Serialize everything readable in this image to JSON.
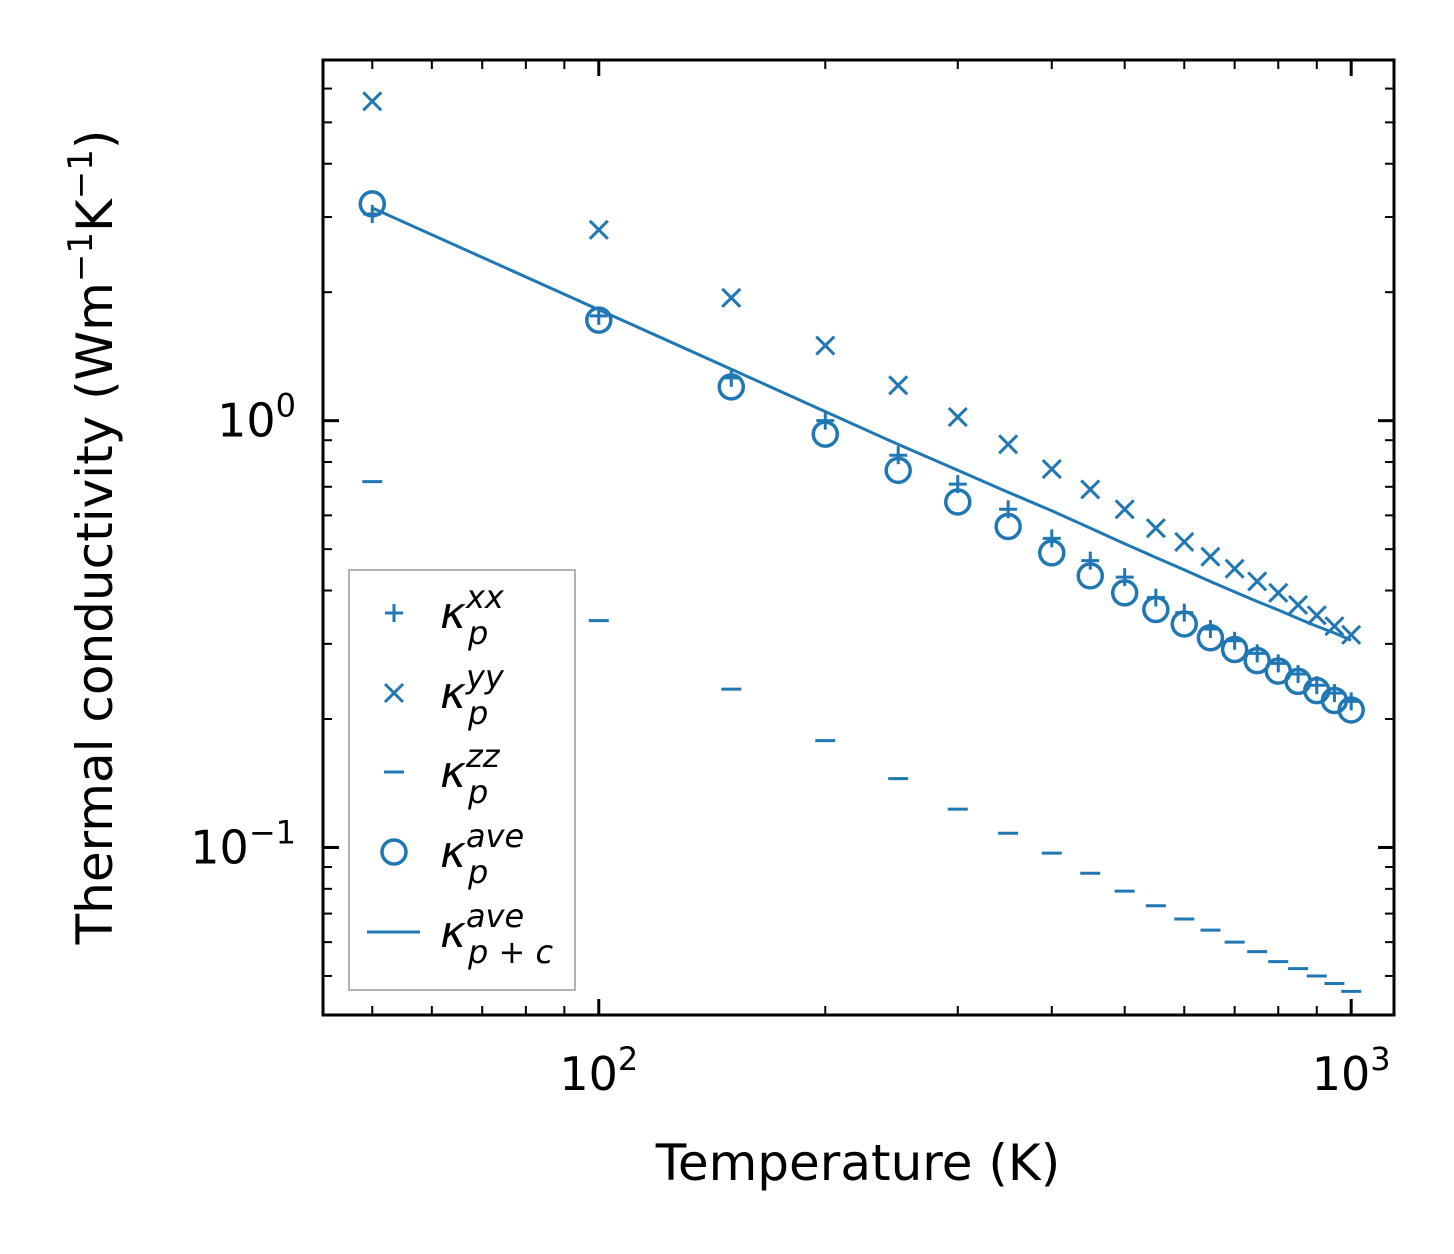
{
  "chart_data": {
    "type": "scatter",
    "xscale": "log",
    "yscale": "log",
    "xlabel": "Temperature (K)",
    "ylabel_base": "Thermal conductivity (Wm",
    "ylabel_sup1": "−1",
    "ylabel_mid": "K",
    "ylabel_sup2": "−1",
    "ylabel_end": ")",
    "xlim": [
      43,
      1140
    ],
    "ylim": [
      0.0405,
      7.0
    ],
    "xticks": [
      {
        "value": 100,
        "base": "10",
        "exp": "2"
      },
      {
        "value": 1000,
        "base": "10",
        "exp": "3"
      }
    ],
    "yticks": [
      {
        "value": 1.0,
        "base": "10",
        "exp": "0"
      },
      {
        "value": 0.1,
        "base": "10",
        "exp": "−1"
      }
    ],
    "color": "#1f77b4",
    "x": [
      50,
      100,
      150,
      200,
      250,
      300,
      350,
      400,
      450,
      500,
      550,
      600,
      650,
      700,
      750,
      800,
      850,
      900,
      950,
      1000
    ],
    "series": [
      {
        "name": "kappa_p^xx",
        "marker": "plus",
        "values": [
          3.05,
          1.76,
          1.26,
          1.0,
          0.83,
          0.71,
          0.62,
          0.53,
          0.47,
          0.43,
          0.385,
          0.355,
          0.325,
          0.305,
          0.285,
          0.27,
          0.255,
          0.24,
          0.23,
          0.22
        ]
      },
      {
        "name": "kappa_p^yy",
        "marker": "x",
        "values": [
          5.6,
          2.8,
          1.94,
          1.5,
          1.21,
          1.02,
          0.88,
          0.77,
          0.69,
          0.62,
          0.56,
          0.52,
          0.48,
          0.45,
          0.42,
          0.395,
          0.37,
          0.35,
          0.33,
          0.315
        ]
      },
      {
        "name": "kappa_p^zz",
        "marker": "hline",
        "values": [
          0.72,
          0.34,
          0.235,
          0.178,
          0.145,
          0.123,
          0.108,
          0.097,
          0.087,
          0.079,
          0.073,
          0.068,
          0.064,
          0.06,
          0.057,
          0.054,
          0.052,
          0.05,
          0.048,
          0.046
        ]
      },
      {
        "name": "kappa_p^ave",
        "marker": "circle",
        "values": [
          3.22,
          1.72,
          1.2,
          0.93,
          0.765,
          0.645,
          0.565,
          0.49,
          0.433,
          0.395,
          0.361,
          0.334,
          0.31,
          0.291,
          0.274,
          0.259,
          0.245,
          0.233,
          0.221,
          0.21
        ]
      },
      {
        "name": "kappa_p+c^ave",
        "marker": "line",
        "values": [
          3.15,
          1.82,
          1.32,
          1.05,
          0.88,
          0.765,
          0.68,
          0.615,
          0.56,
          0.515,
          0.478,
          0.447,
          0.42,
          0.397,
          0.377,
          0.36,
          0.344,
          0.33,
          0.318,
          0.306
        ]
      }
    ],
    "legend": {
      "position": "lower-left",
      "entries": [
        {
          "marker": "plus",
          "symbol": "κ",
          "sub": "p",
          "sup": "xx"
        },
        {
          "marker": "x",
          "symbol": "κ",
          "sub": "p",
          "sup": "yy"
        },
        {
          "marker": "hline",
          "symbol": "κ",
          "sub": "p",
          "sup": "zz"
        },
        {
          "marker": "circle",
          "symbol": "κ",
          "sub": "p",
          "sup": "ave"
        },
        {
          "marker": "line",
          "symbol": "κ",
          "sub": "p + c",
          "sup": "ave"
        }
      ]
    }
  }
}
